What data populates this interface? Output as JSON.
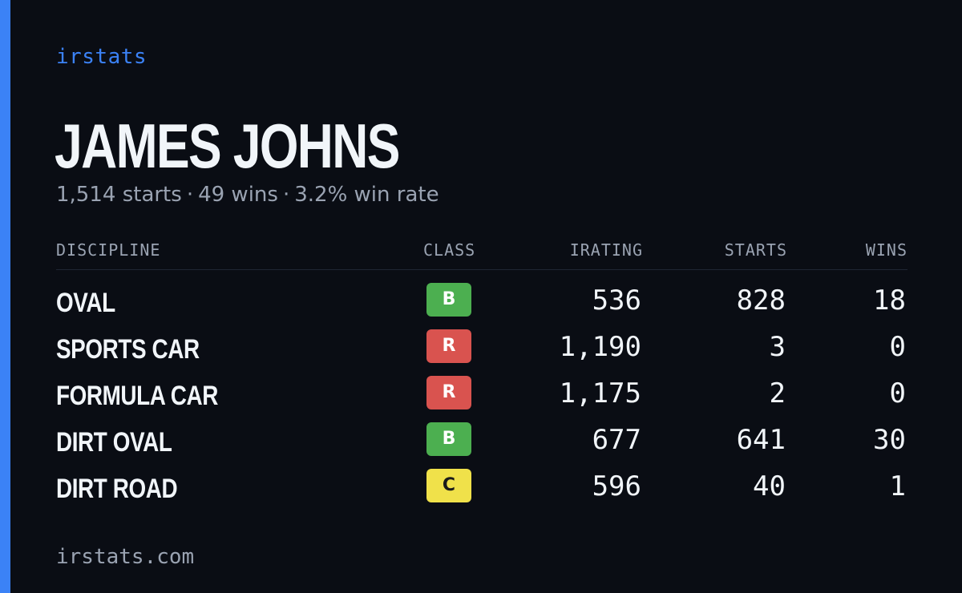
{
  "brand": "irstats",
  "driver": {
    "name": "JAMES JOHNS",
    "starts_text": "1,514 starts",
    "wins_text": "49 wins",
    "win_rate_text": "3.2% win rate",
    "separator": "·"
  },
  "table": {
    "headers": {
      "discipline": "DISCIPLINE",
      "class": "CLASS",
      "irating": "IRATING",
      "starts": "STARTS",
      "wins": "WINS"
    },
    "rows": [
      {
        "discipline": "OVAL",
        "class": "B",
        "class_color": "#4caf50",
        "class_text_color": "#ffffff",
        "irating": "536",
        "starts": "828",
        "wins": "18"
      },
      {
        "discipline": "SPORTS CAR",
        "class": "R",
        "class_color": "#d9534f",
        "class_text_color": "#ffffff",
        "irating": "1,190",
        "starts": "3",
        "wins": "0"
      },
      {
        "discipline": "FORMULA CAR",
        "class": "R",
        "class_color": "#d9534f",
        "class_text_color": "#ffffff",
        "irating": "1,175",
        "starts": "2",
        "wins": "0"
      },
      {
        "discipline": "DIRT OVAL",
        "class": "B",
        "class_color": "#4caf50",
        "class_text_color": "#ffffff",
        "irating": "677",
        "starts": "641",
        "wins": "30"
      },
      {
        "discipline": "DIRT ROAD",
        "class": "C",
        "class_color": "#f0e14a",
        "class_text_color": "#1a1a1a",
        "irating": "596",
        "starts": "40",
        "wins": "1"
      }
    ]
  },
  "footer": "irstats.com",
  "colors": {
    "background": "#0a0d14",
    "accent": "#3b82f6",
    "text_primary": "#f1f5f9",
    "text_muted": "#9aa3b2"
  }
}
